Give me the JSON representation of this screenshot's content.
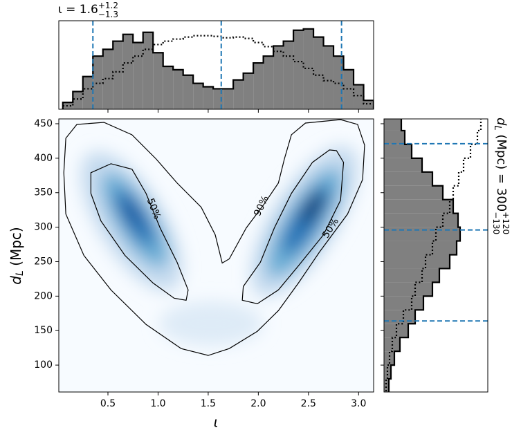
{
  "chart_data": [
    {
      "type": "histogram",
      "title": {
        "main": "ι = 1.6",
        "sup": "+1.2",
        "sub": "−1.3"
      },
      "bins": [
        0.05,
        0.15,
        0.25,
        0.35,
        0.45,
        0.55,
        0.65,
        0.75,
        0.85,
        0.95,
        1.05,
        1.15,
        1.25,
        1.35,
        1.45,
        1.55,
        1.65,
        1.75,
        1.85,
        1.95,
        2.05,
        2.15,
        2.25,
        2.35,
        2.45,
        2.55,
        2.65,
        2.75,
        2.85,
        2.95,
        3.05,
        3.15
      ],
      "series": [
        {
          "style": "filled",
          "color": "#808080",
          "values": [
            10,
            26,
            48,
            78,
            88,
            100,
            110,
            98,
            113,
            83,
            63,
            58,
            50,
            38,
            33,
            30,
            30,
            43,
            53,
            68,
            78,
            93,
            100,
            116,
            118,
            106,
            93,
            78,
            58,
            36,
            13
          ]
        },
        {
          "style": "dotted",
          "color": "#000000",
          "values": [
            5,
            15,
            30,
            38,
            45,
            55,
            68,
            78,
            88,
            95,
            100,
            103,
            106,
            108,
            108,
            107,
            105,
            106,
            104,
            98,
            92,
            85,
            78,
            70,
            60,
            50,
            42,
            38,
            30,
            20,
            8
          ]
        }
      ],
      "xlim": [
        0.01,
        3.15
      ],
      "ylim": [
        0,
        130
      ],
      "xticks": [
        0.5,
        1,
        1.5,
        2,
        2.5,
        3
      ],
      "vlines": [
        0.35,
        1.63,
        2.83
      ],
      "line_color": "#1f77b4"
    },
    {
      "type": "contour",
      "xlabel": "ι",
      "ylabel": {
        "main": "d",
        "sub": "L",
        "rest": " (Mpc)"
      },
      "xlim": [
        0.01,
        3.15
      ],
      "ylim": [
        61,
        457
      ],
      "xticks": [
        0.5,
        {
          "value": 1,
          "label": "1.0"
        },
        1.5,
        {
          "value": 2,
          "label": "2.0"
        },
        2.5,
        {
          "value": 3,
          "label": "3.0"
        }
      ],
      "yticks": [
        100,
        150,
        200,
        250,
        300,
        350,
        400,
        450
      ],
      "colormap": [
        "#f7fbff",
        "#08306b"
      ],
      "contours": [
        {
          "level": "90%",
          "x": [
            0.19,
            0.46,
            0.74,
            0.98,
            1.19,
            1.43,
            1.57,
            1.64,
            1.71,
            1.88,
            2.06,
            2.2,
            2.26,
            2.33,
            2.47,
            2.82,
            2.99,
            3.06,
            3.04,
            2.89,
            2.61,
            2.4,
            2.2,
            1.99,
            1.71,
            1.5,
            1.23,
            0.88,
            0.53,
            0.26,
            0.08,
            0.06,
            0.08
          ],
          "y": [
            449,
            452,
            434,
            399,
            364,
            329,
            289,
            248,
            254,
            299,
            334,
            364,
            399,
            434,
            451,
            456,
            449,
            419,
            369,
            319,
            264,
            219,
            179,
            149,
            124,
            114,
            124,
            159,
            209,
            259,
            319,
            379,
            429
          ]
        },
        {
          "level": "50%",
          "x": [
            0.33,
            0.53,
            0.74,
            0.88,
            1.02,
            1.19,
            1.3,
            1.28,
            1.16,
            0.95,
            0.67,
            0.43,
            0.33
          ],
          "y": [
            379,
            392,
            384,
            349,
            299,
            249,
            209,
            194,
            197,
            219,
            259,
            309,
            349
          ]
        },
        {
          "level": "50%",
          "x": [
            2.78,
            2.85,
            2.82,
            2.65,
            2.4,
            2.2,
            1.99,
            1.84,
            1.85,
            2.02,
            2.16,
            2.33,
            2.54,
            2.71
          ],
          "y": [
            411,
            394,
            339,
            289,
            244,
            209,
            189,
            194,
            214,
            249,
            299,
            349,
            394,
            412
          ]
        }
      ]
    },
    {
      "type": "histogram",
      "orientation": "horizontal",
      "title": {
        "main": "d",
        "sub": "L",
        "rest": " (Mpc) = 300",
        "sup2": "+120",
        "sub2": "−130"
      },
      "bins": [
        60,
        80,
        100,
        120,
        140,
        160,
        180,
        200,
        220,
        240,
        260,
        280,
        300,
        320,
        340,
        360,
        380,
        400,
        420,
        440,
        460
      ],
      "series": [
        {
          "style": "filled",
          "color": "#808080",
          "values": [
            7,
            10,
            15,
            23,
            35,
            45,
            57,
            70,
            80,
            95,
            105,
            110,
            107,
            100,
            85,
            70,
            55,
            40,
            30,
            25
          ]
        },
        {
          "style": "dotted",
          "color": "#000000",
          "values": [
            3,
            5,
            8,
            12,
            18,
            28,
            40,
            45,
            55,
            60,
            70,
            75,
            85,
            95,
            100,
            108,
            115,
            125,
            135,
            140
          ]
        }
      ],
      "xlim": [
        0,
        150
      ],
      "ylim": [
        61,
        457
      ],
      "yticks": [
        100,
        150,
        200,
        250,
        300,
        350,
        400,
        450
      ],
      "hlines": [
        421,
        296,
        164
      ],
      "line_color": "#1f77b4"
    }
  ]
}
